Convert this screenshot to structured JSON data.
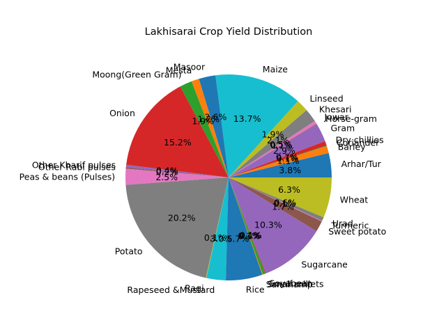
{
  "chart_data": {
    "type": "pie",
    "title": "Lakhisarai Crop Yield Distribution",
    "start_angle_deg": 0,
    "direction": "counterclockwise",
    "slices": [
      {
        "label": "Arhar/Tur",
        "pct_label": "3.8%",
        "value": 3.8,
        "color": "#1f77b4"
      },
      {
        "label": "Barley",
        "pct_label": "1.1%",
        "value": 1.1,
        "color": "#ff7f0e"
      },
      {
        "label": "Coriander",
        "pct_label": "0.1%",
        "value": 0.1,
        "color": "#2ca02c"
      },
      {
        "label": "Dry chillies",
        "pct_label": "0.7%",
        "value": 0.7,
        "color": "#d62728"
      },
      {
        "label": "Gram",
        "pct_label": "2.9%",
        "value": 2.9,
        "color": "#9467bd"
      },
      {
        "label": "Horse-gram",
        "pct_label": "0.1%",
        "value": 0.1,
        "color": "#8c564b"
      },
      {
        "label": "Jowar",
        "pct_label": "0.5%",
        "value": 0.5,
        "color": "#e377c2"
      },
      {
        "label": "Khesari",
        "pct_label": "2.1%",
        "value": 2.1,
        "color": "#7f7f7f"
      },
      {
        "label": "Linseed",
        "pct_label": "1.9%",
        "value": 1.9,
        "color": "#bcbd22"
      },
      {
        "label": "Maize",
        "pct_label": "13.7%",
        "value": 13.7,
        "color": "#17becf"
      },
      {
        "label": "Masoor",
        "pct_label": "2.6%",
        "value": 2.6,
        "color": "#1f77b4"
      },
      {
        "label": "Mesta",
        "pct_label": "1.2%",
        "value": 1.2,
        "color": "#ff7f0e"
      },
      {
        "label": "Moong(Green Gram)",
        "pct_label": "1.9%",
        "value": 1.9,
        "color": "#2ca02c"
      },
      {
        "label": "Onion",
        "pct_label": "15.2%",
        "value": 15.2,
        "color": "#d62728"
      },
      {
        "label": "Other Kharif pulses",
        "pct_label": "0.4%",
        "value": 0.4,
        "color": "#9467bd"
      },
      {
        "label": "Other Rabi pulses",
        "pct_label": "0.2%",
        "value": 0.2,
        "color": "#8c564b"
      },
      {
        "label": "Peas & beans (Pulses)",
        "pct_label": "2.5%",
        "value": 2.5,
        "color": "#e377c2"
      },
      {
        "label": "Potato",
        "pct_label": "20.2%",
        "value": 20.2,
        "color": "#7f7f7f"
      },
      {
        "label": "Ragi",
        "pct_label": "0.1%",
        "value": 0.1,
        "color": "#bcbd22"
      },
      {
        "label": "Rapeseed &Mustard",
        "pct_label": "3.0%",
        "value": 3.0,
        "color": "#17becf"
      },
      {
        "label": "Rice",
        "pct_label": "5.7%",
        "value": 5.7,
        "color": "#1f77b4"
      },
      {
        "label": "Sannhamp",
        "pct_label": "0.1%",
        "value": 0.1,
        "color": "#ff7f0e"
      },
      {
        "label": "Small millets",
        "pct_label": "0.4%",
        "value": 0.4,
        "color": "#2ca02c"
      },
      {
        "label": "Soyabean",
        "pct_label": "0.1%",
        "value": 0.1,
        "color": "#d62728"
      },
      {
        "label": "Sugarcane",
        "pct_label": "10.3%",
        "value": 10.3,
        "color": "#9467bd"
      },
      {
        "label": "Sweet potato",
        "pct_label": "1.7%",
        "value": 1.7,
        "color": "#8c564b"
      },
      {
        "label": "Turmeric",
        "pct_label": "0.1%",
        "value": 0.1,
        "color": "#e377c2"
      },
      {
        "label": "Urad",
        "pct_label": "0.6%",
        "value": 0.6,
        "color": "#7f7f7f"
      },
      {
        "label": "Wheat",
        "pct_label": "6.3%",
        "value": 6.3,
        "color": "#bcbd22"
      }
    ]
  }
}
